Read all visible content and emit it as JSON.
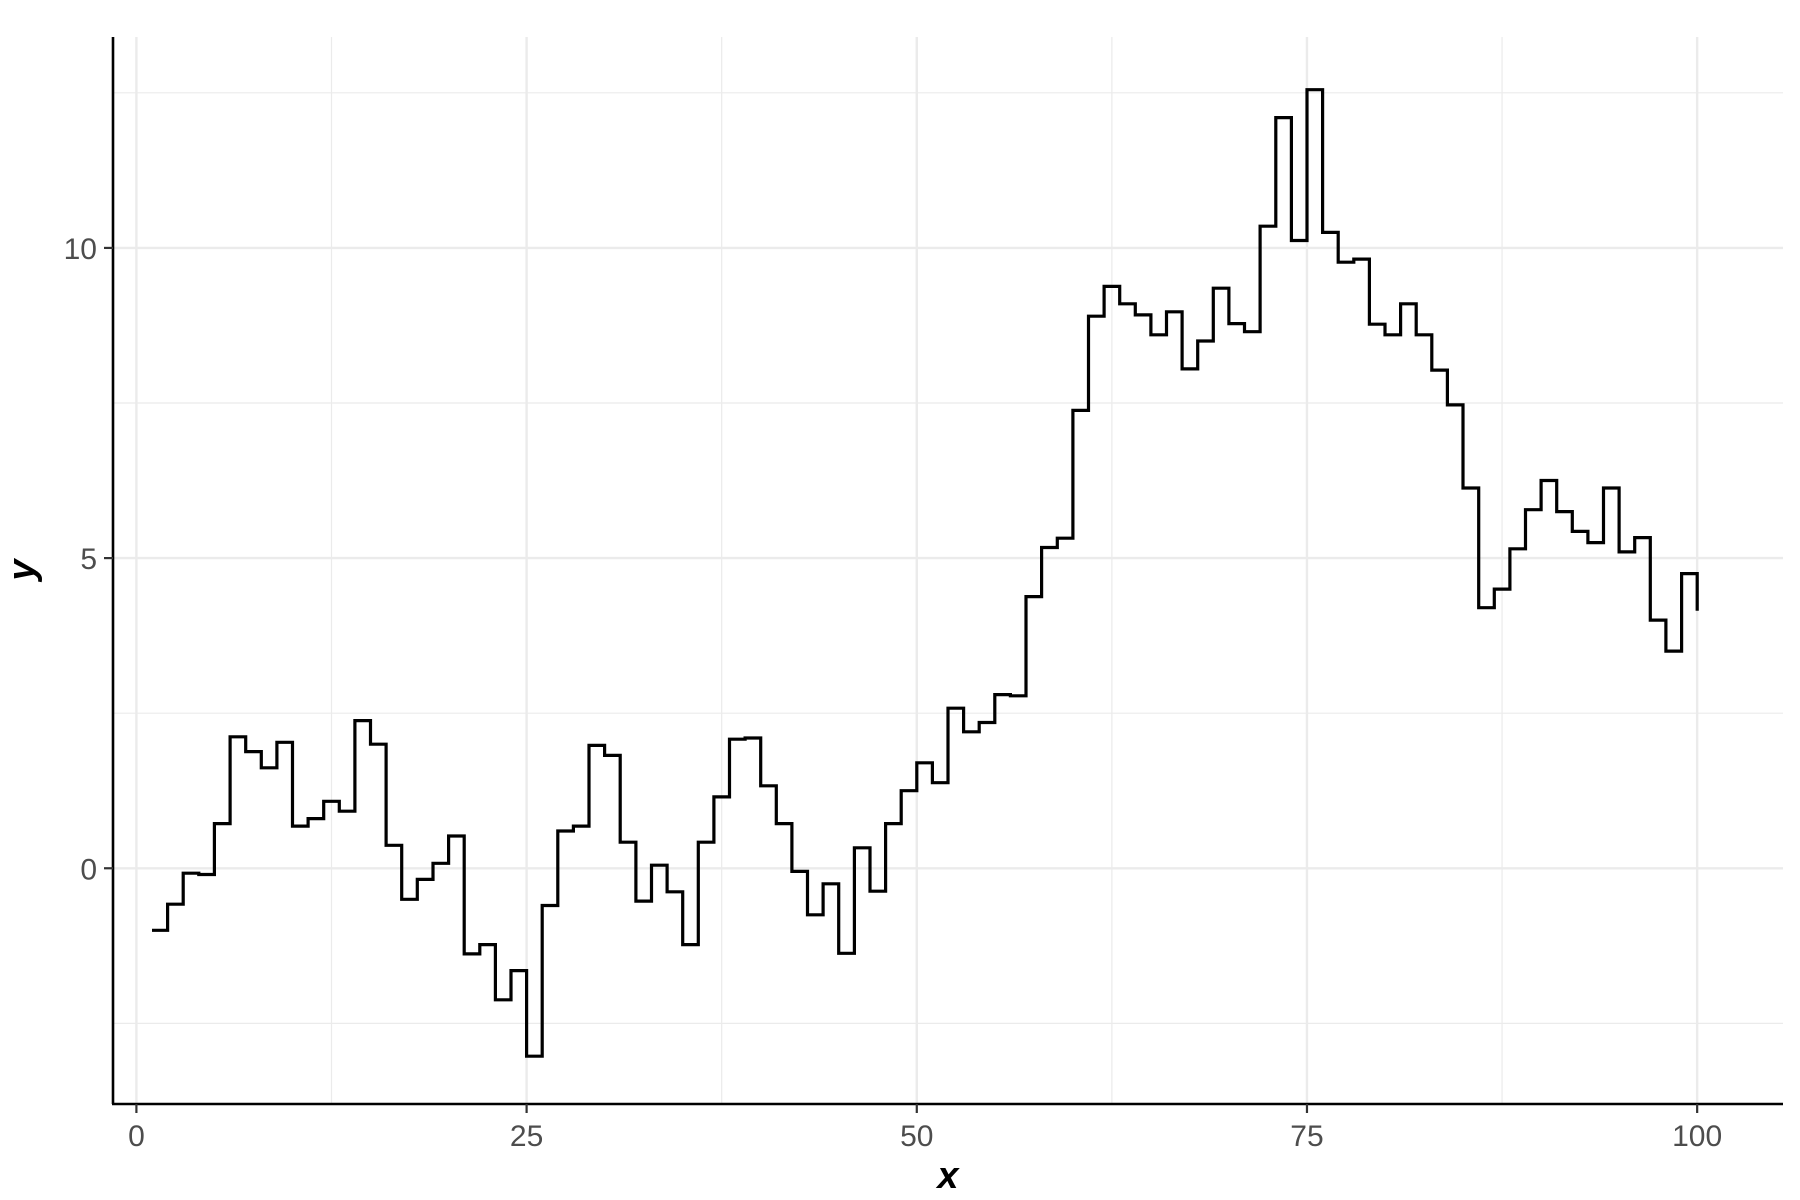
{
  "chart_data": {
    "type": "line",
    "step": true,
    "xlabel": "x",
    "ylabel": "y",
    "xlim": [
      -1.5,
      105.5
    ],
    "ylim": [
      -3.8,
      13.4
    ],
    "x_ticks": [
      0,
      25,
      50,
      75,
      100
    ],
    "y_ticks": [
      0,
      5,
      10
    ],
    "x_minor": [
      12.5,
      37.5,
      62.5,
      87.5
    ],
    "y_minor": [
      -2.5,
      2.5,
      7.5,
      12.5
    ],
    "grid": true,
    "line_color": "#000000",
    "series": [
      {
        "x": [
          1,
          2,
          3,
          4,
          5,
          6,
          7,
          8,
          9,
          10,
          11,
          12,
          13,
          14,
          15,
          16,
          17,
          18,
          19,
          20,
          21,
          22,
          23,
          24,
          25,
          26,
          27,
          28,
          29,
          30,
          31,
          32,
          33,
          34,
          35,
          36,
          37,
          38,
          39,
          40,
          41,
          42,
          43,
          44,
          45,
          46,
          47,
          48,
          49,
          50,
          51,
          52,
          53,
          54,
          55,
          56,
          57,
          58,
          59,
          60,
          61,
          62,
          63,
          64,
          65,
          66,
          67,
          68,
          69,
          70,
          71,
          72,
          73,
          74,
          75,
          76,
          77,
          78,
          79,
          80,
          81,
          82,
          83,
          84,
          85,
          86,
          87,
          88,
          89,
          90,
          91,
          92,
          93,
          94,
          95,
          96,
          97,
          98,
          99,
          100
        ],
        "values": [
          -1.0,
          -0.58,
          -0.08,
          -0.1,
          0.72,
          2.12,
          1.88,
          1.62,
          2.03,
          0.68,
          0.8,
          1.08,
          0.92,
          2.38,
          2.0,
          0.37,
          -0.5,
          -0.18,
          0.08,
          0.52,
          -1.38,
          -1.23,
          -2.12,
          -1.65,
          -3.03,
          -0.6,
          0.6,
          0.68,
          1.98,
          1.82,
          0.42,
          -0.53,
          0.05,
          -0.38,
          -1.23,
          0.42,
          1.15,
          2.08,
          2.1,
          1.33,
          0.72,
          -0.05,
          -0.75,
          -0.25,
          -1.37,
          0.33,
          -0.37,
          0.72,
          1.25,
          1.7,
          1.38,
          2.58,
          2.2,
          2.35,
          2.8,
          2.78,
          4.38,
          5.17,
          5.32,
          7.38,
          8.9,
          9.38,
          9.1,
          8.92,
          8.6,
          8.97,
          8.05,
          8.5,
          9.35,
          8.78,
          8.65,
          10.35,
          12.1,
          10.12,
          12.55,
          10.25,
          9.77,
          9.82,
          8.77,
          8.6,
          9.1,
          8.6,
          8.03,
          7.47,
          6.13,
          4.2,
          4.5,
          5.15,
          5.78,
          6.25,
          5.75,
          5.43,
          5.25,
          6.13,
          5.1,
          5.33,
          4.0,
          3.5,
          4.75,
          4.15
        ]
      }
    ]
  }
}
